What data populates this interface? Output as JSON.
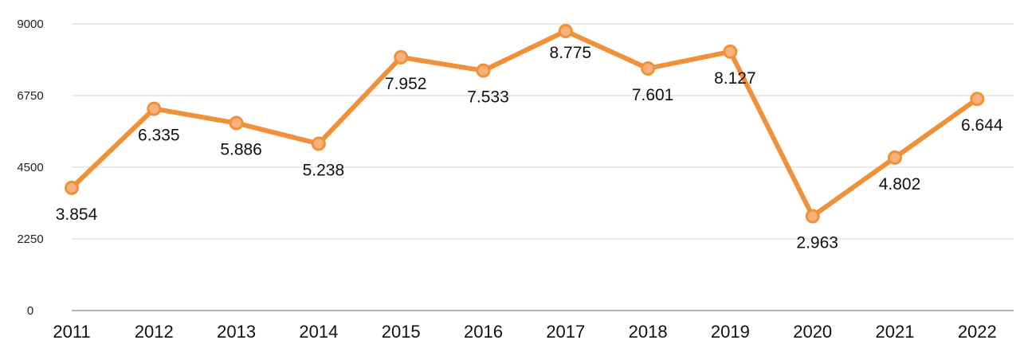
{
  "chart_data": {
    "type": "line",
    "title": "",
    "xlabel": "",
    "ylabel": "",
    "categories": [
      "2011",
      "2012",
      "2013",
      "2014",
      "2015",
      "2016",
      "2017",
      "2018",
      "2019",
      "2020",
      "2021",
      "2022"
    ],
    "series": [
      {
        "values": [
          3854,
          6335,
          5886,
          5238,
          7952,
          7533,
          8775,
          7601,
          8127,
          2963,
          4802,
          6644
        ]
      }
    ],
    "data_labels": [
      "3.854",
      "6.335",
      "5.886",
      "5.238",
      "7.952",
      "7.533",
      "8.775",
      "7.601",
      "8.127",
      "2.963",
      "4.802",
      "6.644"
    ],
    "ylim": [
      0,
      9000
    ],
    "yticks": [
      "0",
      "2250",
      "4500",
      "6750",
      "9000"
    ],
    "grid": true,
    "legend": "none",
    "colors": {
      "line": "#f0913a",
      "marker_edge": "#f0913a",
      "marker_fill": "#f6b27a",
      "grid": "#dddddd"
    }
  }
}
